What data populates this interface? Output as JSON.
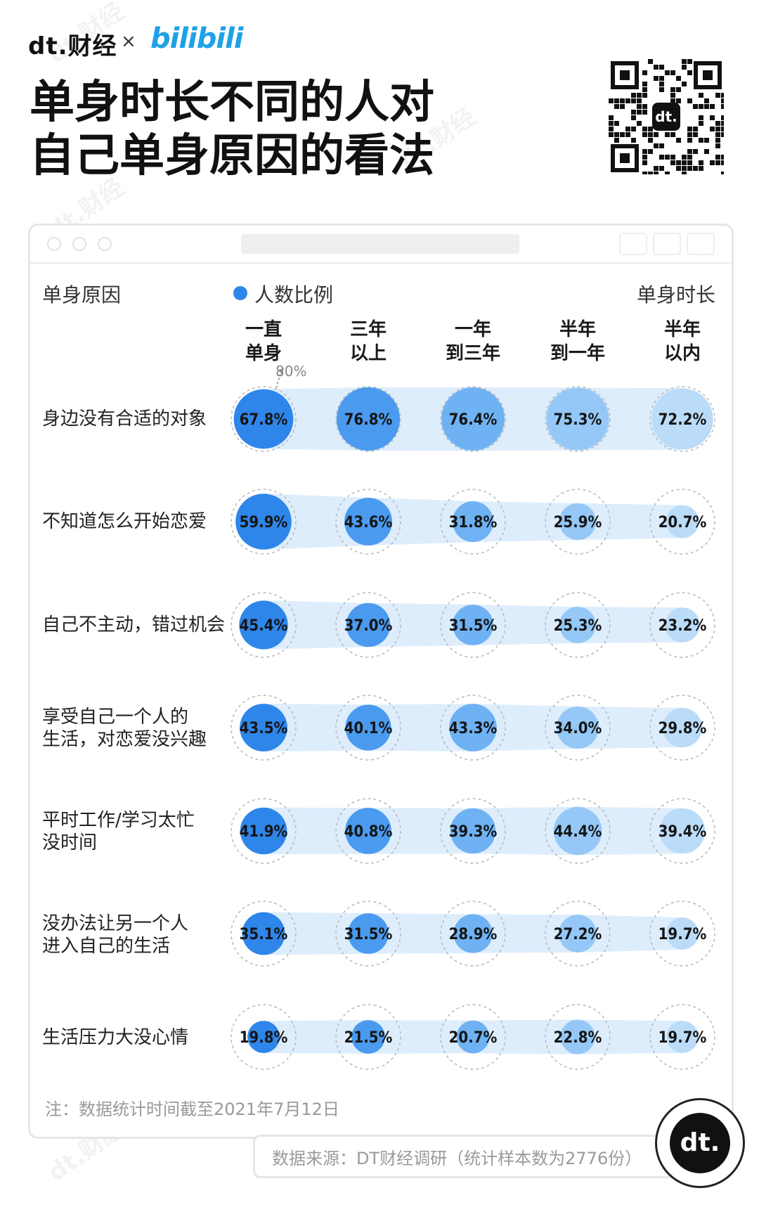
{
  "header": {
    "brand_dt": "dt.财经",
    "brand_x": "×",
    "brand_bili": "bilibili",
    "title_line1": "单身时长不同的人对",
    "title_line2": "自己单身原因的看法"
  },
  "watermark_text": "dt.财经",
  "chart_data": {
    "type": "bubble-matrix",
    "title": "单身时长不同的人对自己单身原因的看法",
    "row_axis_label": "单身原因",
    "col_axis_label": "单身时长",
    "legend": [
      {
        "name": "人数比例",
        "color": "#2f86ea"
      }
    ],
    "reference_label": "80%",
    "reference_value": 80,
    "columns": [
      {
        "line1": "一直",
        "line2": "单身"
      },
      {
        "line1": "三年",
        "line2": "以上"
      },
      {
        "line1": "一年",
        "line2": "到三年"
      },
      {
        "line1": "半年",
        "line2": "到一年"
      },
      {
        "line1": "半年",
        "line2": "以内"
      }
    ],
    "rows": [
      {
        "label_lines": [
          "身边没有合适的对象"
        ],
        "values": [
          67.8,
          76.8,
          76.4,
          75.3,
          72.2
        ],
        "labels": [
          "67.8%",
          "76.8%",
          "76.4%",
          "75.3%",
          "72.2%"
        ]
      },
      {
        "label_lines": [
          "不知道怎么开始恋爱"
        ],
        "values": [
          59.9,
          43.6,
          31.8,
          25.9,
          20.7
        ],
        "labels": [
          "59.9%",
          "43.6%",
          "31.8%",
          "25.9%",
          "20.7%"
        ]
      },
      {
        "label_lines": [
          "自己不主动，错过机会"
        ],
        "values": [
          45.4,
          37.0,
          31.5,
          25.3,
          23.2
        ],
        "labels": [
          "45.4%",
          "37.0%",
          "31.5%",
          "25.3%",
          "23.2%"
        ]
      },
      {
        "label_lines": [
          "享受自己一个人的",
          "生活，对恋爱没兴趣"
        ],
        "values": [
          43.5,
          40.1,
          43.3,
          34.0,
          29.8
        ],
        "labels": [
          "43.5%",
          "40.1%",
          "43.3%",
          "34.0%",
          "29.8%"
        ]
      },
      {
        "label_lines": [
          "平时工作/学习太忙",
          "没时间"
        ],
        "values": [
          41.9,
          40.8,
          39.3,
          44.4,
          39.4
        ],
        "labels": [
          "41.9%",
          "40.8%",
          "39.3%",
          "44.4%",
          "39.4%"
        ]
      },
      {
        "label_lines": [
          "没办法让另一个人",
          "进入自己的生活"
        ],
        "values": [
          35.1,
          31.5,
          28.9,
          27.2,
          19.7
        ],
        "labels": [
          "35.1%",
          "31.5%",
          "28.9%",
          "27.2%",
          "19.7%"
        ]
      },
      {
        "label_lines": [
          "生活压力大没心情"
        ],
        "values": [
          19.8,
          21.5,
          20.7,
          22.8,
          19.7
        ],
        "labels": [
          "19.8%",
          "21.5%",
          "20.7%",
          "22.8%",
          "19.7%"
        ]
      }
    ],
    "column_colors": [
      "#2f86ea",
      "#4a9bef",
      "#6fb2f3",
      "#95c8f6",
      "#bbdcf9"
    ]
  },
  "footer": {
    "note": "注：数据统计时间截至2021年7月12日",
    "source": "数据来源：DT财经调研（统计样本数为2776份）",
    "badge": "dt."
  }
}
